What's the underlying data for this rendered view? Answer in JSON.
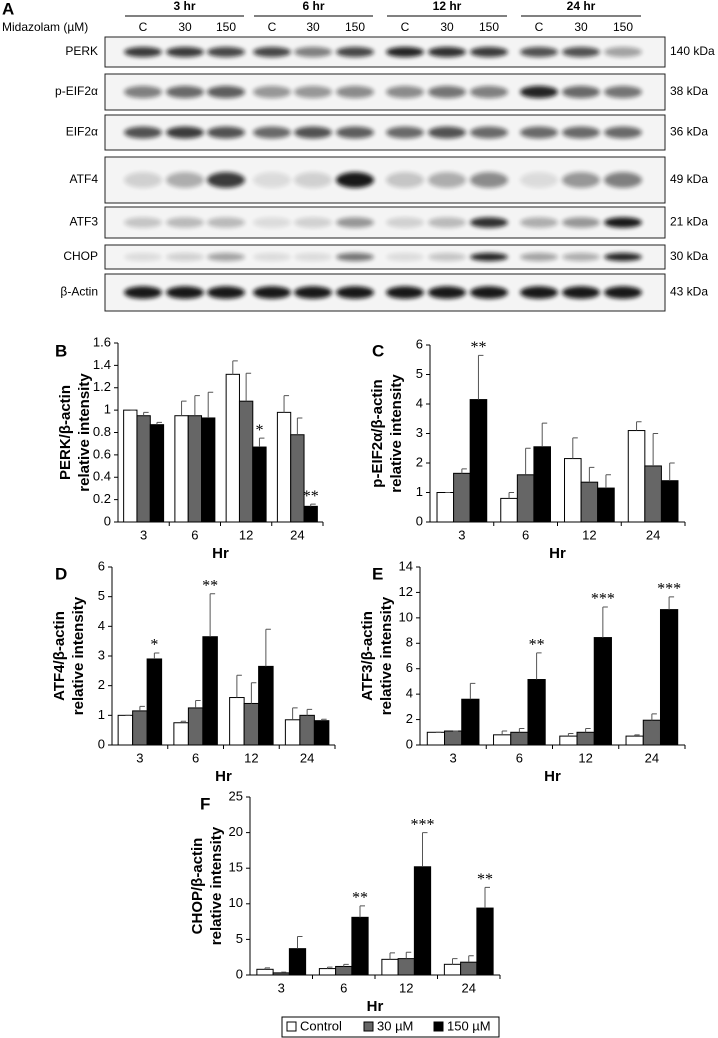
{
  "blot": {
    "panel": "A",
    "treatment_label": "Midazolam (µM)",
    "timepoints": [
      "3 hr",
      "6 hr",
      "12 hr",
      "24 hr"
    ],
    "lanes": [
      "C",
      "30",
      "150",
      "C",
      "30",
      "150",
      "C",
      "30",
      "150",
      "C",
      "30",
      "150"
    ],
    "rows": [
      {
        "protein": "PERK",
        "size": "140 kDa"
      },
      {
        "protein": "p-EIF2α",
        "size": "38 kDa"
      },
      {
        "protein": "EIF2α",
        "size": "36 kDa"
      },
      {
        "protein": "ATF4",
        "size": "49 kDa"
      },
      {
        "protein": "ATF3",
        "size": "21 kDa"
      },
      {
        "protein": "CHOP",
        "size": "30 kDa"
      },
      {
        "protein": "β-Actin",
        "size": "43 kDa"
      }
    ]
  },
  "chart_data": [
    {
      "type": "bar",
      "panel": "B",
      "ylabel": [
        "PERK/β-actin",
        "relative intensity"
      ],
      "xlabel": "Hr",
      "categories": [
        "3",
        "6",
        "12",
        "24"
      ],
      "ylim": [
        0,
        1.6
      ],
      "yticks": [
        0,
        0.2,
        0.4,
        0.6,
        0.8,
        1,
        1.2,
        1.4,
        1.6
      ],
      "series": [
        {
          "color": "#ffffff",
          "values": [
            1.0,
            0.95,
            1.32,
            0.98
          ],
          "errors": [
            0,
            0.13,
            0.12,
            0.15
          ],
          "significance": [
            null,
            null,
            null,
            null
          ]
        },
        {
          "color": "#666666",
          "values": [
            0.95,
            0.95,
            1.08,
            0.78
          ],
          "errors": [
            0.03,
            0.18,
            0.25,
            0.15
          ],
          "significance": [
            null,
            null,
            null,
            null
          ]
        },
        {
          "color": "#000000",
          "values": [
            0.87,
            0.93,
            0.67,
            0.14
          ],
          "errors": [
            0.02,
            0.23,
            0.08,
            0.02
          ],
          "significance": [
            null,
            null,
            "*",
            "**"
          ]
        }
      ]
    },
    {
      "type": "bar",
      "panel": "C",
      "ylabel": [
        "p-EIF2α/β-actin",
        "relative intensity"
      ],
      "xlabel": "Hr",
      "categories": [
        "3",
        "6",
        "12",
        "24"
      ],
      "ylim": [
        0,
        6
      ],
      "yticks": [
        0,
        1,
        2,
        3,
        4,
        5,
        6
      ],
      "series": [
        {
          "color": "#ffffff",
          "values": [
            1.0,
            0.8,
            2.15,
            3.1
          ],
          "errors": [
            0,
            0.2,
            0.7,
            0.3
          ],
          "significance": [
            null,
            null,
            null,
            null
          ]
        },
        {
          "color": "#666666",
          "values": [
            1.65,
            1.6,
            1.35,
            1.9
          ],
          "errors": [
            0.15,
            0.9,
            0.5,
            1.1
          ],
          "significance": [
            null,
            null,
            null,
            null
          ]
        },
        {
          "color": "#000000",
          "values": [
            4.15,
            2.55,
            1.15,
            1.4
          ],
          "errors": [
            1.5,
            0.8,
            0.45,
            0.6
          ],
          "significance": [
            "**",
            null,
            null,
            null
          ]
        }
      ]
    },
    {
      "type": "bar",
      "panel": "D",
      "ylabel": [
        "ATF4/β-actin",
        "relative intensity"
      ],
      "xlabel": "Hr",
      "categories": [
        "3",
        "6",
        "12",
        "24"
      ],
      "ylim": [
        0,
        6
      ],
      "yticks": [
        0,
        1,
        2,
        3,
        4,
        5,
        6
      ],
      "series": [
        {
          "color": "#ffffff",
          "values": [
            1.0,
            0.75,
            1.6,
            0.85
          ],
          "errors": [
            0,
            0.05,
            0.75,
            0.4
          ],
          "significance": [
            null,
            null,
            null,
            null
          ]
        },
        {
          "color": "#666666",
          "values": [
            1.15,
            1.25,
            1.4,
            1.0
          ],
          "errors": [
            0.15,
            0.25,
            0.7,
            0.2
          ],
          "significance": [
            null,
            null,
            null,
            null
          ]
        },
        {
          "color": "#000000",
          "values": [
            2.9,
            3.65,
            2.65,
            0.82
          ],
          "errors": [
            0.2,
            1.45,
            1.25,
            0.05
          ],
          "significance": [
            "*",
            "**",
            null,
            null
          ]
        }
      ]
    },
    {
      "type": "bar",
      "panel": "E",
      "ylabel": [
        "ATF3/β-actin",
        "relative intensity"
      ],
      "xlabel": "Hr",
      "categories": [
        "3",
        "6",
        "12",
        "24"
      ],
      "ylim": [
        0,
        14
      ],
      "yticks": [
        0,
        2,
        4,
        6,
        8,
        10,
        12,
        14
      ],
      "series": [
        {
          "color": "#ffffff",
          "values": [
            1.0,
            0.8,
            0.7,
            0.7
          ],
          "errors": [
            0,
            0.3,
            0.2,
            0.1
          ],
          "significance": [
            null,
            null,
            null,
            null
          ]
        },
        {
          "color": "#666666",
          "values": [
            1.1,
            1.0,
            1.0,
            1.95
          ],
          "errors": [
            0,
            0.3,
            0.3,
            0.5
          ],
          "significance": [
            null,
            null,
            null,
            null
          ]
        },
        {
          "color": "#000000",
          "values": [
            3.6,
            5.15,
            8.45,
            10.65
          ],
          "errors": [
            1.25,
            2.1,
            2.4,
            1.0
          ],
          "significance": [
            null,
            "**",
            "***",
            "***"
          ]
        }
      ]
    },
    {
      "type": "bar",
      "panel": "F",
      "ylabel": [
        "CHOP/β-actin",
        "relative intensity"
      ],
      "xlabel": "Hr",
      "categories": [
        "3",
        "6",
        "12",
        "24"
      ],
      "ylim": [
        0,
        25
      ],
      "yticks": [
        0,
        5,
        10,
        15,
        20,
        25
      ],
      "series": [
        {
          "name": "Control",
          "color": "#ffffff",
          "values": [
            0.8,
            0.9,
            2.2,
            1.5
          ],
          "errors": [
            0.2,
            0.2,
            0.9,
            0.8
          ],
          "significance": [
            null,
            null,
            null,
            null
          ]
        },
        {
          "name": "30 µM",
          "color": "#666666",
          "values": [
            0.3,
            1.2,
            2.3,
            1.8
          ],
          "errors": [
            0.1,
            0.3,
            0.9,
            0.9
          ],
          "significance": [
            null,
            null,
            null,
            null
          ]
        },
        {
          "name": "150 µM",
          "color": "#000000",
          "values": [
            3.7,
            8.1,
            15.2,
            9.4
          ],
          "errors": [
            1.7,
            1.6,
            4.8,
            2.9
          ],
          "significance": [
            null,
            "**",
            "***",
            "**"
          ]
        }
      ]
    }
  ]
}
